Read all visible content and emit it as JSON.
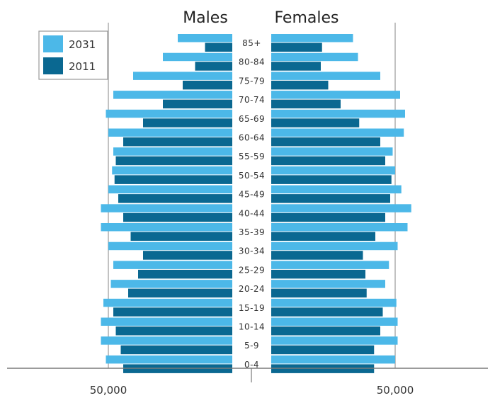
{
  "chart_data": {
    "type": "bar",
    "orientation": "horizontal",
    "subtype": "population-pyramid",
    "headings": {
      "left": "Males",
      "right": "Females"
    },
    "categories": [
      "85+",
      "80-84",
      "75-79",
      "70-74",
      "65-69",
      "60-64",
      "55-59",
      "50-54",
      "45-49",
      "40-44",
      "35-39",
      "30-34",
      "25-29",
      "20-24",
      "15-19",
      "10-14",
      "5-9",
      "0-4"
    ],
    "series": [
      {
        "name": "2031",
        "color": "#4cb8e8",
        "males": [
          22000,
          28000,
          40000,
          48000,
          51000,
          50000,
          48000,
          48500,
          50000,
          53000,
          53000,
          50000,
          48000,
          49000,
          52000,
          53000,
          53000,
          51000
        ],
        "females": [
          33000,
          35000,
          44000,
          52000,
          54000,
          53500,
          49000,
          50000,
          52500,
          56500,
          55000,
          51000,
          47500,
          46000,
          50500,
          51000,
          51000,
          50000
        ]
      },
      {
        "name": "2011",
        "color": "#0a6891",
        "males": [
          11000,
          15000,
          20000,
          28000,
          36000,
          44000,
          47000,
          47500,
          46000,
          44000,
          41000,
          36000,
          38000,
          42000,
          48000,
          47000,
          45000,
          44000
        ],
        "females": [
          20500,
          20000,
          23000,
          28000,
          35500,
          44000,
          46000,
          48500,
          48000,
          46000,
          42000,
          37000,
          38000,
          38500,
          45000,
          44000,
          41500,
          41500
        ]
      }
    ],
    "xticks": [
      {
        "label": "50,000",
        "side": "left",
        "value": 50000
      },
      {
        "label": "50,000",
        "side": "right",
        "value": 50000
      }
    ],
    "xlim": [
      0,
      75000
    ],
    "legend": {
      "position": "top-left",
      "entries": [
        "2031",
        "2011"
      ]
    },
    "grid": false
  }
}
